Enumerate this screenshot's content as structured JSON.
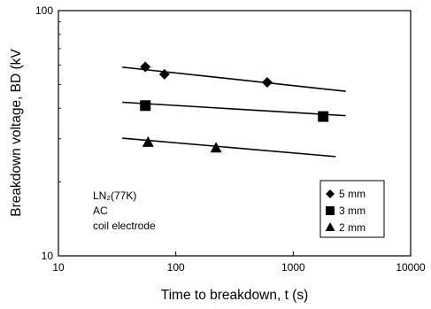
{
  "chart_data": {
    "type": "scatter",
    "title": "",
    "xlabel": "Time to breakdown, t (s)",
    "ylabel": "Breakdown voltage, BD (kV",
    "x_scale": "log",
    "y_scale": "log",
    "xlim": [
      10,
      10000
    ],
    "ylim": [
      10,
      100
    ],
    "x_ticks": [
      "10",
      "100",
      "1000",
      "10000"
    ],
    "y_ticks": [
      "10",
      "100"
    ],
    "grid": false,
    "legend_placement": "bottom-right",
    "annotations": [
      "LN₂(77K)",
      "AC",
      "coil electrode"
    ],
    "series": [
      {
        "name": "5 mm",
        "marker": "diamond",
        "color": "#000000",
        "points": [
          [
            55,
            59
          ],
          [
            80,
            55
          ],
          [
            600,
            51
          ]
        ],
        "fit": [
          [
            35,
            58.8
          ],
          [
            2800,
            46.9
          ]
        ]
      },
      {
        "name": "3 mm",
        "marker": "square",
        "color": "#000000",
        "points": [
          [
            55,
            41
          ],
          [
            1800,
            37
          ]
        ],
        "fit": [
          [
            35,
            42.3
          ],
          [
            2800,
            37.3
          ]
        ]
      },
      {
        "name": "2 mm",
        "marker": "triangle",
        "color": "#000000",
        "points": [
          [
            58,
            29
          ],
          [
            220,
            27.5
          ]
        ],
        "fit": [
          [
            35,
            30.2
          ],
          [
            2300,
            25.4
          ]
        ]
      }
    ]
  }
}
